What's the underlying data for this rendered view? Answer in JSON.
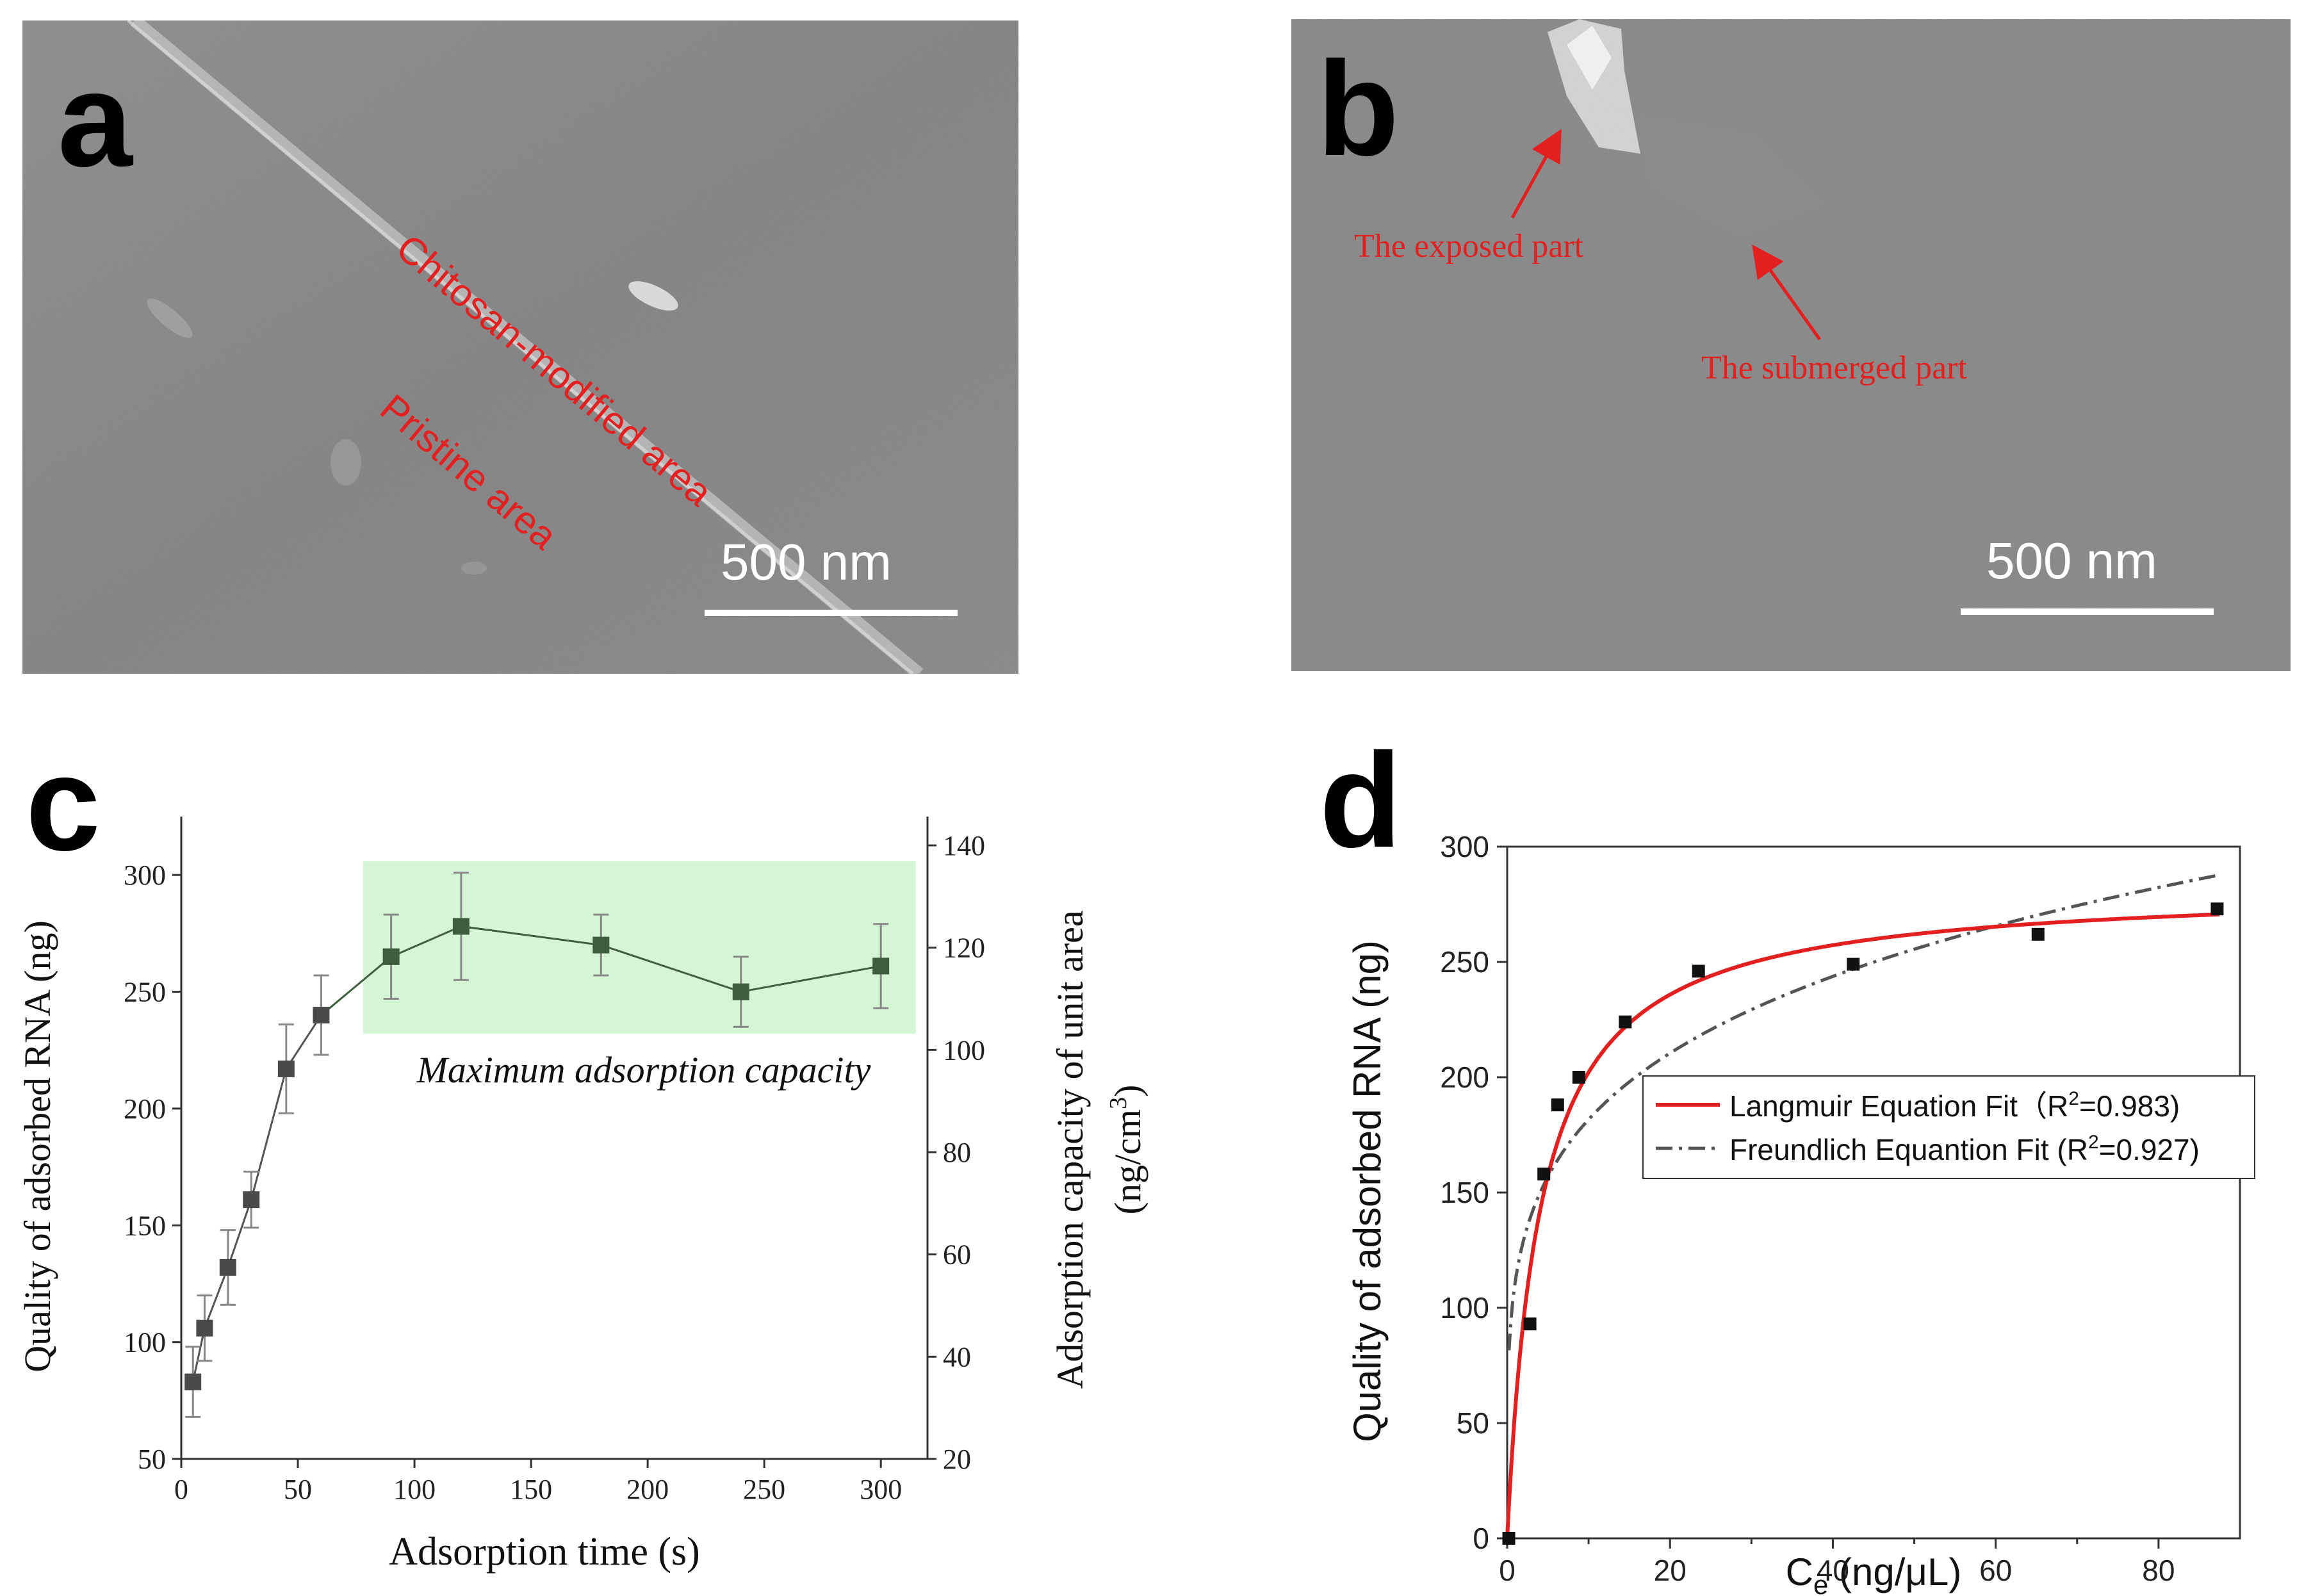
{
  "panels": {
    "a": {
      "letter": "a",
      "label_modified": "Chitosan-modified area",
      "label_pristine": "Pristine area",
      "scale_bar": "500 nm"
    },
    "b": {
      "letter": "b",
      "label_exposed": "The exposed part",
      "label_submerged": "The submerged  part",
      "scale_bar": "500 nm"
    },
    "c": {
      "letter": "c"
    },
    "d": {
      "letter": "d"
    }
  },
  "colors": {
    "red": "#e41f1f",
    "green_point": "#3d5e3d",
    "green_band": "#ccf5cc",
    "gray_point": "#4a4a4a",
    "fit_red": "#e41f1f",
    "fit_gray": "#555555"
  },
  "chart_data": [
    {
      "id": "c",
      "type": "line",
      "xlabel": "Adsorption  time (s)",
      "ylabel": "Quality of adsorbed RNA (ng)",
      "y2label_line1": "Adsorption capacity of unit area",
      "y2label_line2": "(ng/cm",
      "y2label_sup": "3",
      "y2label_close": ")",
      "xlim": [
        0,
        320
      ],
      "ylim": [
        50,
        325
      ],
      "y2lim": [
        20,
        140
      ],
      "xticks": [
        0,
        50,
        100,
        150,
        200,
        250,
        300
      ],
      "yticks": [
        50,
        100,
        150,
        200,
        250,
        300
      ],
      "y2ticks": [
        20,
        40,
        60,
        80,
        100,
        120,
        140
      ],
      "annotation": "Maximum adsorption capacity",
      "band_x": [
        78,
        315
      ],
      "band_y": [
        232,
        306
      ],
      "points": [
        {
          "x": 5,
          "y": 83,
          "err": 15
        },
        {
          "x": 10,
          "y": 106,
          "err": 14
        },
        {
          "x": 20,
          "y": 132,
          "err": 16
        },
        {
          "x": 30,
          "y": 161,
          "err": 12
        },
        {
          "x": 45,
          "y": 217,
          "err": 19
        },
        {
          "x": 60,
          "y": 240,
          "err": 17
        },
        {
          "x": 90,
          "y": 265,
          "err": 18
        },
        {
          "x": 120,
          "y": 278,
          "err": 23
        },
        {
          "x": 180,
          "y": 270,
          "err": 13
        },
        {
          "x": 240,
          "y": 250,
          "err": 15
        },
        {
          "x": 300,
          "y": 261,
          "err": 18
        }
      ]
    },
    {
      "id": "d",
      "type": "scatter",
      "xlabel": "C",
      "xlabel_sub": "e",
      "xlabel_rest": " (ng/μL)",
      "ylabel": "Quality of adsorbed RNA (ng)",
      "xlim": [
        0,
        90
      ],
      "ylim": [
        0,
        300
      ],
      "xticks": [
        0,
        20,
        40,
        60,
        80
      ],
      "yticks": [
        0,
        50,
        100,
        150,
        200,
        250,
        300
      ],
      "points": [
        {
          "x": 0.2,
          "y": 0
        },
        {
          "x": 2.8,
          "y": 93
        },
        {
          "x": 4.5,
          "y": 158
        },
        {
          "x": 6.2,
          "y": 188
        },
        {
          "x": 8.8,
          "y": 200
        },
        {
          "x": 14.5,
          "y": 224
        },
        {
          "x": 23.5,
          "y": 246
        },
        {
          "x": 42.5,
          "y": 249
        },
        {
          "x": 65.2,
          "y": 262
        },
        {
          "x": 87.2,
          "y": 273
        }
      ],
      "fits": [
        {
          "name": "Langmuir Equation Fit",
          "r2_prefix": "（R",
          "r2_sup": "2",
          "r2_value": "=0.983)",
          "qmax": 283,
          "kl": 0.25,
          "style": "solid"
        },
        {
          "name": "Freundlich Equantion Fit",
          "r2_prefix": " (R",
          "r2_sup": "2",
          "r2_value": "=0.927)",
          "kf": 111.5,
          "n": 0.212,
          "style": "dashdot"
        }
      ],
      "legend_position": "center-right"
    }
  ]
}
